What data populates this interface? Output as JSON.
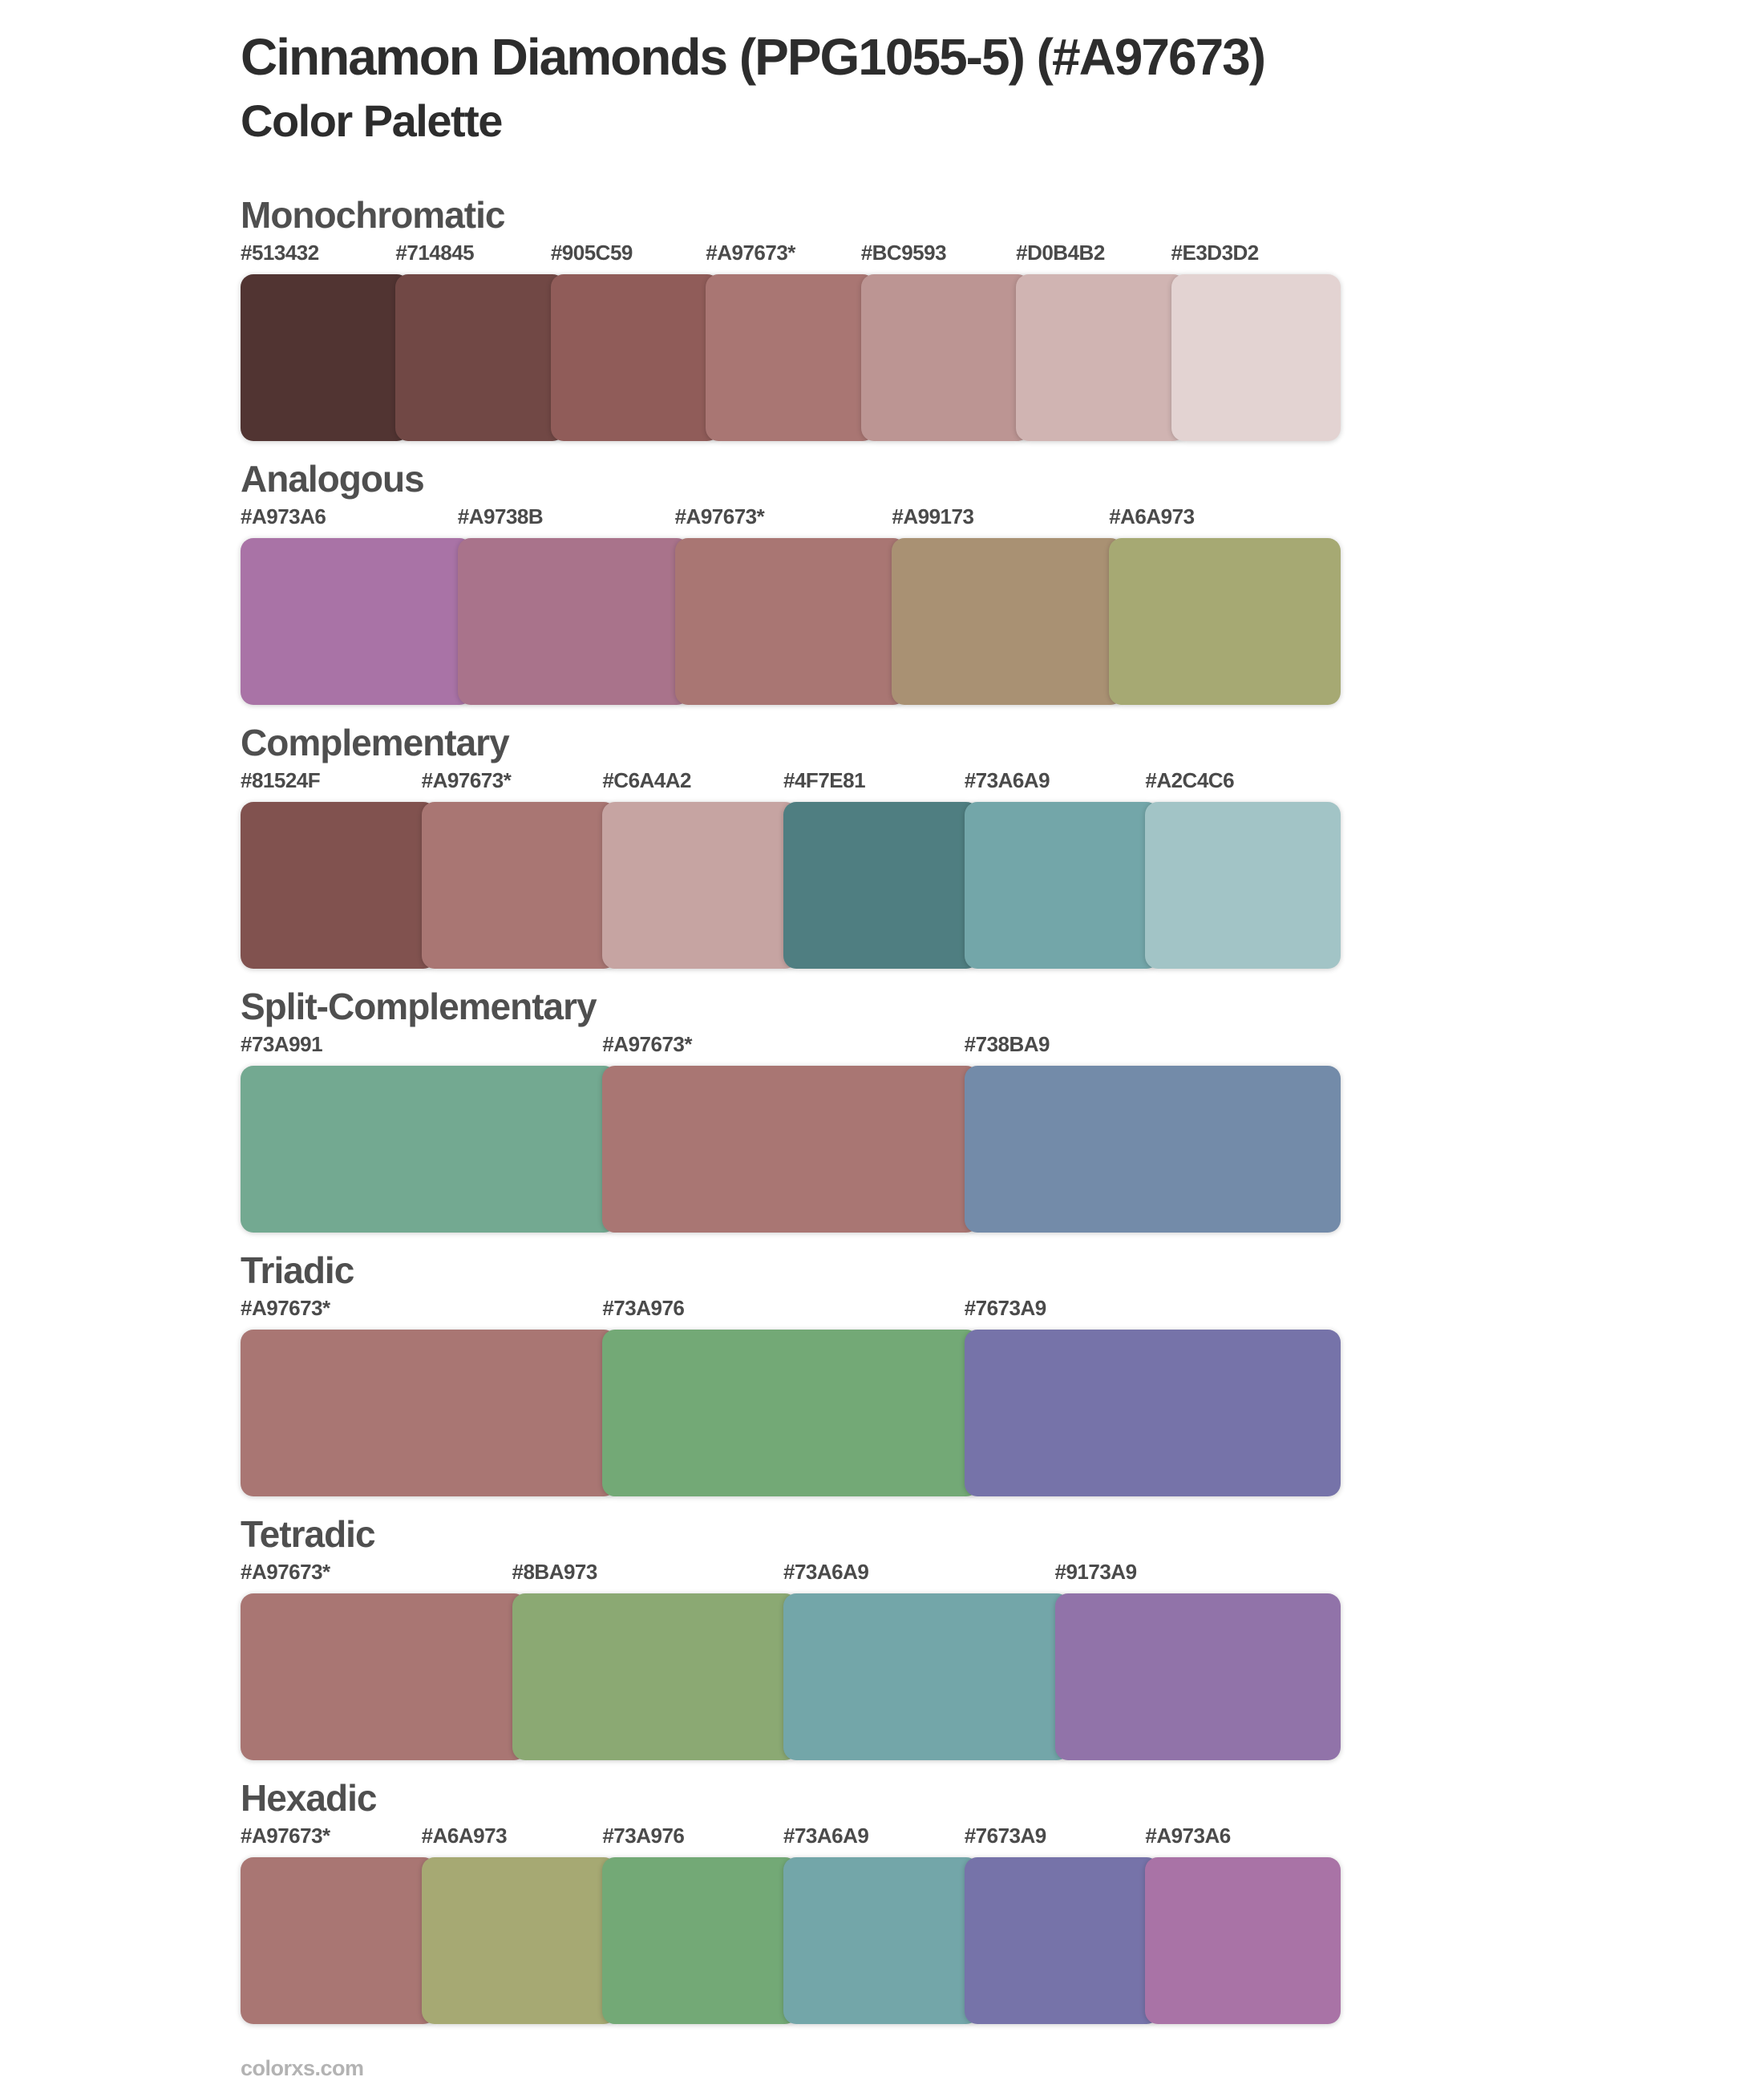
{
  "page": {
    "title": "Cinnamon Diamonds (PPG1055-5) (#A97673)",
    "subtitle": "Color Palette",
    "base_color": "#A97673",
    "footer": "colorxs.com"
  },
  "sections": [
    {
      "name": "Monochromatic",
      "swatches": [
        {
          "label": "#513432",
          "hex": "#513432"
        },
        {
          "label": "#714845",
          "hex": "#714845"
        },
        {
          "label": "#905C59",
          "hex": "#905C59"
        },
        {
          "label": "#A97673*",
          "hex": "#A97673"
        },
        {
          "label": "#BC9593",
          "hex": "#BC9593"
        },
        {
          "label": "#D0B4B2",
          "hex": "#D0B4B2"
        },
        {
          "label": "#E3D3D2",
          "hex": "#E3D3D2"
        }
      ]
    },
    {
      "name": "Analogous",
      "swatches": [
        {
          "label": "#A973A6",
          "hex": "#A973A6"
        },
        {
          "label": "#A9738B",
          "hex": "#A9738B"
        },
        {
          "label": "#A97673*",
          "hex": "#A97673"
        },
        {
          "label": "#A99173",
          "hex": "#A99173"
        },
        {
          "label": "#A6A973",
          "hex": "#A6A973"
        }
      ]
    },
    {
      "name": "Complementary",
      "swatches": [
        {
          "label": "#81524F",
          "hex": "#81524F"
        },
        {
          "label": "#A97673*",
          "hex": "#A97673"
        },
        {
          "label": "#C6A4A2",
          "hex": "#C6A4A2"
        },
        {
          "label": "#4F7E81",
          "hex": "#4F7E81"
        },
        {
          "label": "#73A6A9",
          "hex": "#73A6A9"
        },
        {
          "label": "#A2C4C6",
          "hex": "#A2C4C6"
        }
      ]
    },
    {
      "name": "Split-Complementary",
      "swatches": [
        {
          "label": "#73A991",
          "hex": "#73A991"
        },
        {
          "label": "#A97673*",
          "hex": "#A97673"
        },
        {
          "label": "#738BA9",
          "hex": "#738BA9"
        }
      ]
    },
    {
      "name": "Triadic",
      "swatches": [
        {
          "label": "#A97673*",
          "hex": "#A97673"
        },
        {
          "label": "#73A976",
          "hex": "#73A976"
        },
        {
          "label": "#7673A9",
          "hex": "#7673A9"
        }
      ]
    },
    {
      "name": "Tetradic",
      "swatches": [
        {
          "label": "#A97673*",
          "hex": "#A97673"
        },
        {
          "label": "#8BA973",
          "hex": "#8BA973"
        },
        {
          "label": "#73A6A9",
          "hex": "#73A6A9"
        },
        {
          "label": "#9173A9",
          "hex": "#9173A9"
        }
      ]
    },
    {
      "name": "Hexadic",
      "swatches": [
        {
          "label": "#A97673*",
          "hex": "#A97673"
        },
        {
          "label": "#A6A973",
          "hex": "#A6A973"
        },
        {
          "label": "#73A976",
          "hex": "#73A976"
        },
        {
          "label": "#73A6A9",
          "hex": "#73A6A9"
        },
        {
          "label": "#7673A9",
          "hex": "#7673A9"
        },
        {
          "label": "#A973A6",
          "hex": "#A973A6"
        }
      ]
    }
  ]
}
